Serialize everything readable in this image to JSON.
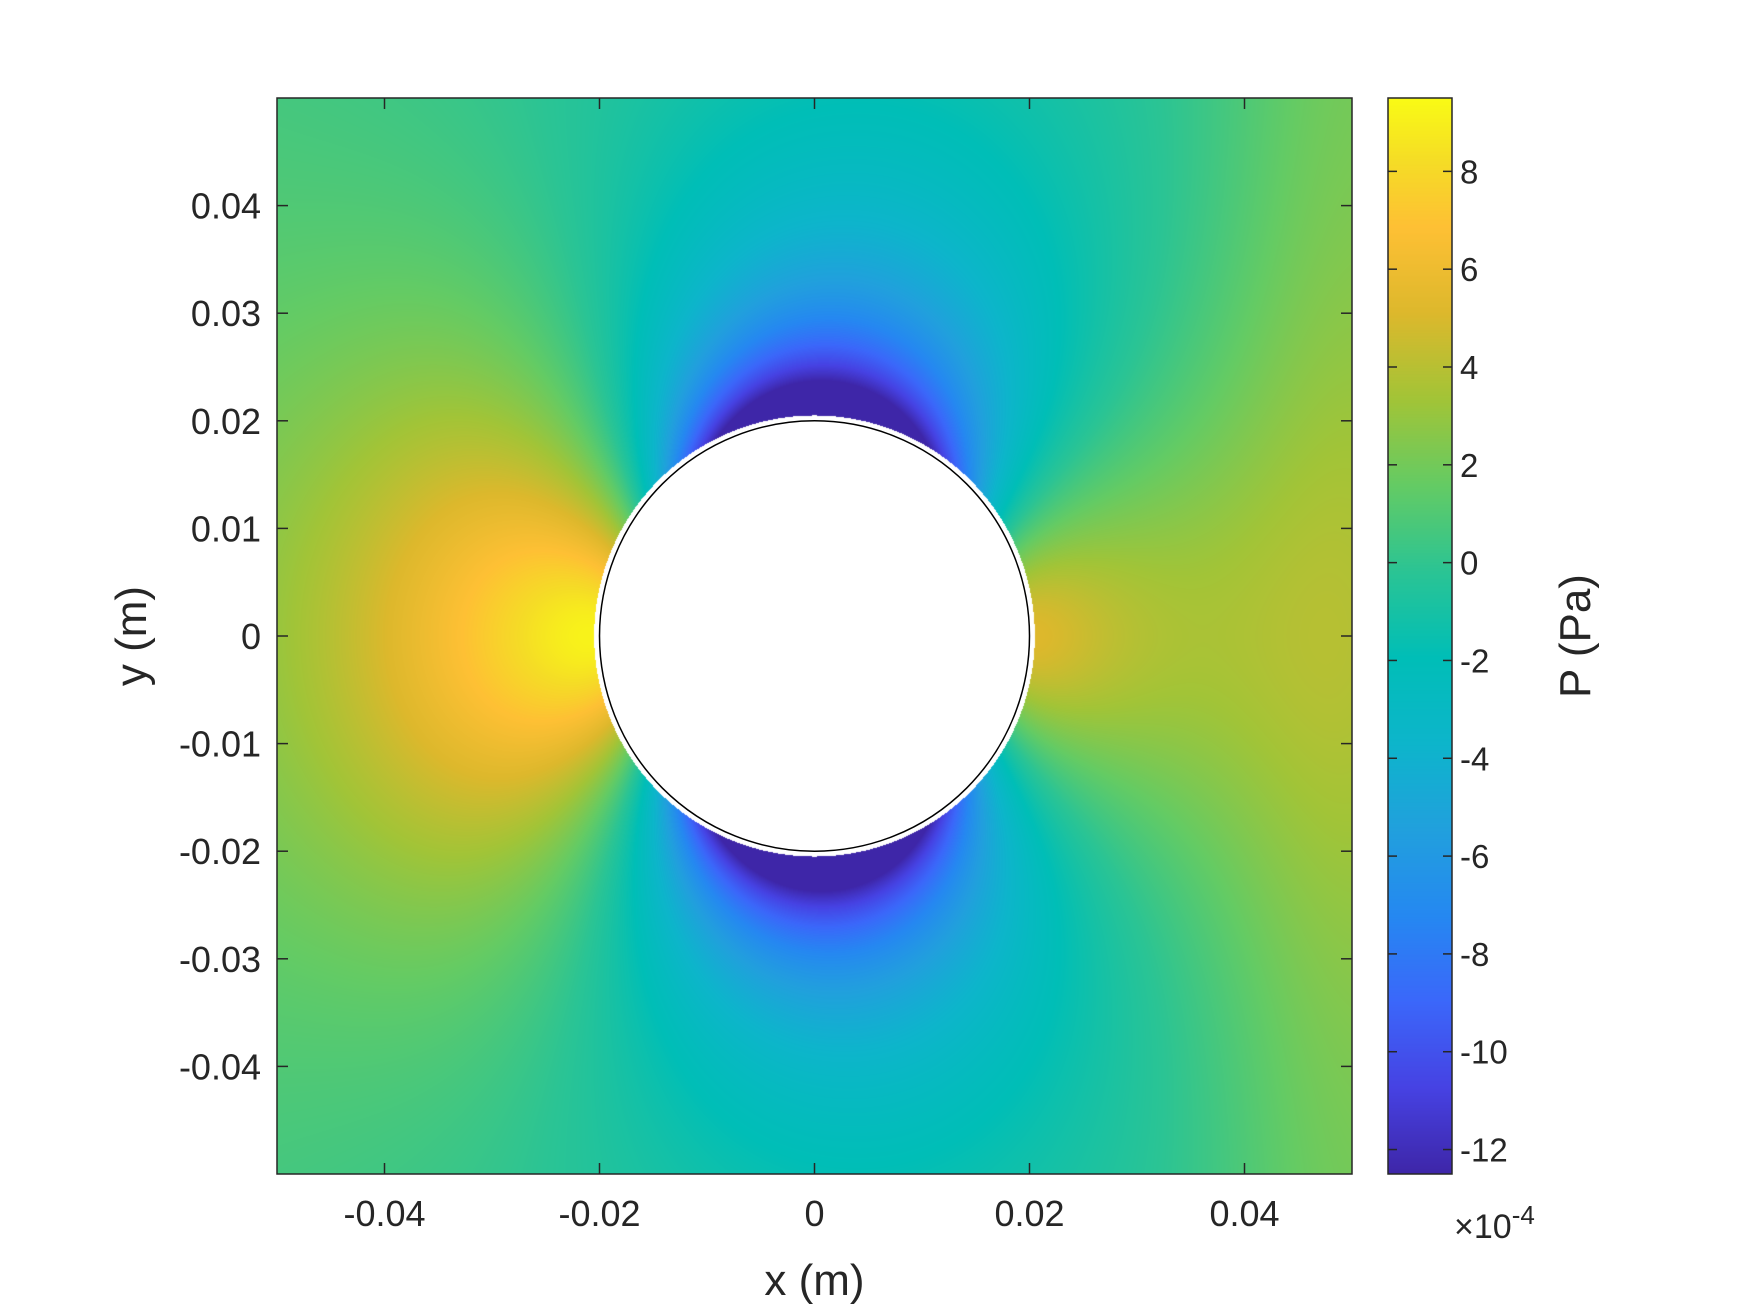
{
  "chart_data": {
    "type": "heatmap",
    "title": "",
    "xlabel": "x (m)",
    "ylabel": "y (m)",
    "xlim": [
      -0.05,
      0.05
    ],
    "ylim": [
      -0.05,
      0.05
    ],
    "xticks": [
      -0.04,
      -0.02,
      0,
      0.02,
      0.04
    ],
    "xtick_labels": [
      "-0.04",
      "-0.02",
      "0",
      "0.02",
      "0.04"
    ],
    "yticks": [
      0.04,
      0.03,
      0.02,
      0.01,
      0,
      -0.01,
      -0.02,
      -0.03,
      -0.04
    ],
    "ytick_labels": [
      "0.04",
      "0.03",
      "0.02",
      "0.01",
      "0",
      "-0.01",
      "-0.02",
      "-0.03",
      "-0.04"
    ],
    "grid": false,
    "colormap": "parula",
    "obstacle": {
      "shape": "circle",
      "center": [
        0,
        0
      ],
      "radius": 0.02,
      "fill": "#ffffff"
    },
    "colorbar": {
      "label": "P (Pa)",
      "limits": [
        -12.5,
        9.5
      ],
      "ticks": [
        8,
        6,
        4,
        2,
        0,
        -2,
        -4,
        -6,
        -8,
        -10,
        -12
      ],
      "tick_labels": [
        "8",
        "6",
        "4",
        "2",
        "0",
        "-2",
        "-4",
        "-6",
        "-8",
        "-10",
        "-12"
      ],
      "exponent_prefix": "×10",
      "exponent": "-4"
    },
    "field": {
      "quantity": "P",
      "units": "Pa × 10^-4",
      "description_values": {
        "max_upstream": 9.5,
        "min_shoulders": -12.5,
        "far_field": 0.5
      }
    }
  }
}
